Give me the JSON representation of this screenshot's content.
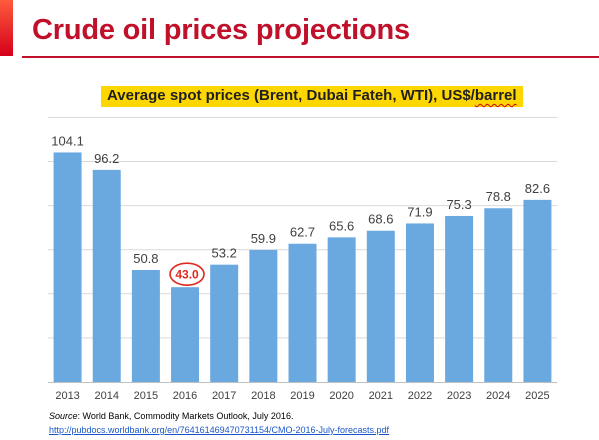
{
  "slide": {
    "title": "Crude oil prices projections",
    "source_label": "Source",
    "source_text": ": World Bank, Commodity Markets Outlook, July 2016.",
    "source_url": "http://pubdocs.worldbank.org/en/764161469470731154/CMO-2016-July-forecasts.pdf"
  },
  "chart_data": {
    "type": "bar",
    "title_main": "Average spot prices (Brent, Dubai Fateh, WTI), US$/",
    "title_tail": "barrel",
    "categories": [
      "2013",
      "2014",
      "2015",
      "2016",
      "2017",
      "2018",
      "2019",
      "2020",
      "2021",
      "2022",
      "2023",
      "2024",
      "2025"
    ],
    "values": [
      104.1,
      96.2,
      50.8,
      43.0,
      53.2,
      59.9,
      62.7,
      65.6,
      68.6,
      71.9,
      75.3,
      78.8,
      82.6
    ],
    "value_labels": [
      "104.1",
      "96.2",
      "50.8",
      "43.0",
      "53.2",
      "59.9",
      "62.7",
      "65.6",
      "68.6",
      "71.9",
      "75.3",
      "78.8",
      "82.6"
    ],
    "highlighted_index": 3,
    "ylim": [
      0,
      120
    ],
    "gridlines": [
      20,
      40,
      60,
      80,
      100,
      120
    ],
    "grid": true,
    "bar_color": "#6aa9e0",
    "highlight_color": "#e0281c",
    "legend": "none"
  }
}
